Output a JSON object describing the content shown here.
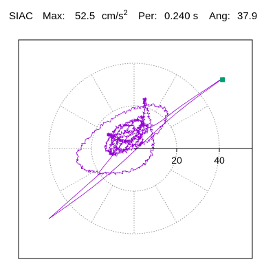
{
  "header": {
    "station": "SIAC",
    "max_label": "Max:",
    "max_value": "52.5",
    "max_unit": "cm/s",
    "max_unit_exp": "2",
    "per_label": "Per:",
    "per_value": "0.240 s",
    "ang_label": "Ang:",
    "ang_value": "37.9"
  },
  "colors": {
    "trace": "#9400d3",
    "marker": "#009e73",
    "frame": "#000000",
    "grid": "#9a9a9a"
  },
  "chart_data": {
    "type": "scatter",
    "title": "",
    "ring_values": [
      20,
      40
    ],
    "ring_labels": [
      "20",
      "40"
    ],
    "marker_point": {
      "x": 41.5,
      "y": 32.3
    },
    "spoke_angles_deg": [
      0,
      30,
      60,
      90,
      120,
      150,
      180,
      210,
      240,
      270,
      300,
      330
    ],
    "grid": true
  }
}
